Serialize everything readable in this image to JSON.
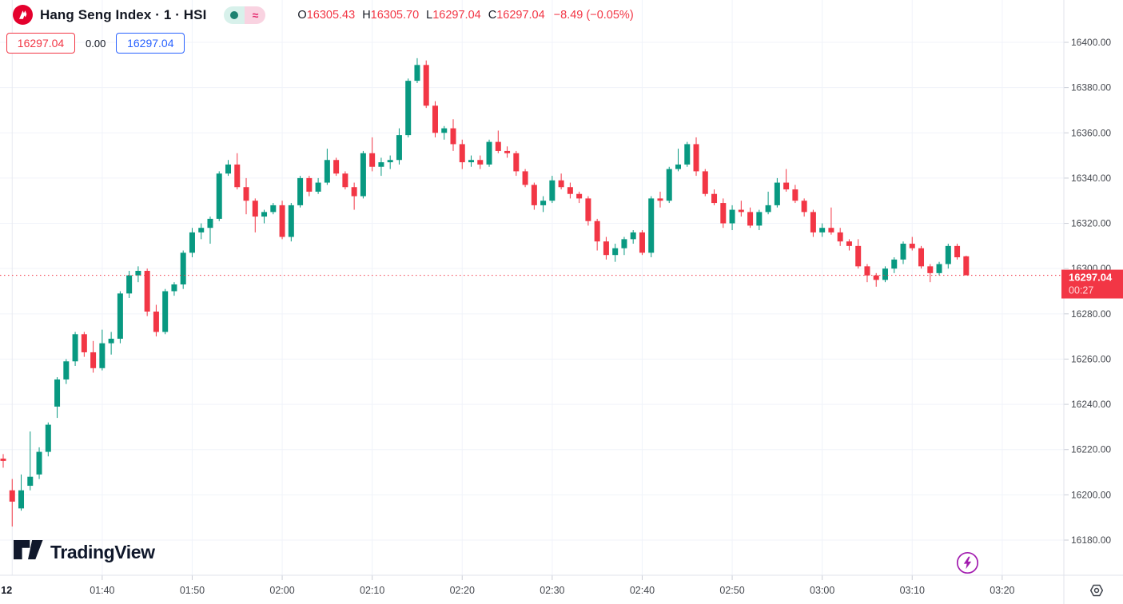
{
  "header": {
    "symbol_title": "Hang Seng Index · 1 · HSI",
    "market_status": {
      "open_dot_icon": "market-open-dot",
      "approx_symbol": "≈"
    },
    "ohlc": {
      "open_label": "O",
      "open": "16305.43",
      "high_label": "H",
      "high": "16305.70",
      "low_label": "L",
      "low": "16297.04",
      "close_label": "C",
      "close": "16297.04",
      "change": "−8.49 (−0.05%)"
    },
    "sell_price": "16297.04",
    "spread": "0.00",
    "buy_price": "16297.04"
  },
  "branding": {
    "logo_text": "TradingView"
  },
  "price_scale": {
    "last_price_label": "16297.04",
    "countdown": "00:27"
  },
  "colors": {
    "up": "#089981",
    "down": "#f23645",
    "accent_blue": "#2962ff",
    "last_price_bg": "#f23645",
    "symbol_logo_red": "#e4012d",
    "flash_purple": "#a21caf",
    "grid": "#f0f3fa",
    "axis_text": "#45484f",
    "separator": "#e0e3eb"
  },
  "chart_data": {
    "type": "candlestick",
    "title": "Hang Seng Index",
    "symbol": "HSI",
    "interval": "1",
    "last_price": 16297.04,
    "countdown": "00:27",
    "y_axis": {
      "tick_labels": [
        "16400.00",
        "16380.00",
        "16360.00",
        "16340.00",
        "16320.00",
        "16300.00",
        "16280.00",
        "16260.00",
        "16240.00",
        "16220.00",
        "16200.00",
        "16180.00"
      ],
      "top_price": 16400,
      "tick_step": 20
    },
    "x_axis": {
      "day_label": "12",
      "tick_labels": [
        "01:40",
        "01:50",
        "02:00",
        "02:10",
        "02:20",
        "02:30",
        "02:40",
        "02:50",
        "03:00",
        "03:10",
        "03:20"
      ]
    },
    "candles": [
      [
        "01:29",
        16216,
        16218,
        16212,
        16215
      ],
      [
        "01:30",
        16202,
        16207,
        16186,
        16197
      ],
      [
        "01:31",
        16194,
        16209,
        16193,
        16202
      ],
      [
        "01:32",
        16204,
        16228,
        16202,
        16208
      ],
      [
        "01:33",
        16209,
        16221,
        16207,
        16219
      ],
      [
        "01:34",
        16219,
        16232,
        16217,
        16231
      ],
      [
        "01:35",
        16239,
        16252,
        16234,
        16251
      ],
      [
        "01:36",
        16251,
        16260,
        16249,
        16259
      ],
      [
        "01:37",
        16259,
        16272,
        16257,
        16271
      ],
      [
        "01:38",
        16271,
        16272,
        16261,
        16263
      ],
      [
        "01:39",
        16263,
        16268,
        16254,
        16256
      ],
      [
        "01:40",
        16256,
        16273,
        16255,
        16267
      ],
      [
        "01:41",
        16267,
        16272,
        16262,
        16269
      ],
      [
        "01:42",
        16269,
        16290,
        16267,
        16289
      ],
      [
        "01:43",
        16289,
        16299,
        16287,
        16297
      ],
      [
        "01:44",
        16297,
        16301,
        16294,
        16299
      ],
      [
        "01:45",
        16299,
        16300,
        16279,
        16281
      ],
      [
        "01:46",
        16281,
        16284,
        16270,
        16272
      ],
      [
        "01:47",
        16272,
        16291,
        16271,
        16290
      ],
      [
        "01:48",
        16290,
        16294,
        16288,
        16293
      ],
      [
        "01:49",
        16293,
        16308,
        16291,
        16307
      ],
      [
        "01:50",
        16307,
        16318,
        16305,
        16316
      ],
      [
        "01:51",
        16316,
        16320,
        16313,
        16318
      ],
      [
        "01:52",
        16318,
        16323,
        16311,
        16322
      ],
      [
        "01:53",
        16322,
        16343,
        16321,
        16342
      ],
      [
        "01:54",
        16342,
        16348,
        16341,
        16346
      ],
      [
        "01:55",
        16346,
        16351,
        16335,
        16336
      ],
      [
        "01:56",
        16336,
        16340,
        16324,
        16330
      ],
      [
        "01:57",
        16330,
        16331,
        16316,
        16323
      ],
      [
        "01:58",
        16323,
        16326,
        16320,
        16325
      ],
      [
        "01:59",
        16325,
        16329,
        16324,
        16328
      ],
      [
        "02:00",
        16328,
        16330,
        16313,
        16314
      ],
      [
        "02:01",
        16314,
        16329,
        16312,
        16328
      ],
      [
        "02:02",
        16328,
        16341,
        16327,
        16340
      ],
      [
        "02:03",
        16340,
        16341,
        16332,
        16334
      ],
      [
        "02:04",
        16334,
        16340,
        16333,
        16338
      ],
      [
        "02:05",
        16338,
        16353,
        16337,
        16348
      ],
      [
        "02:06",
        16348,
        16349,
        16341,
        16342
      ],
      [
        "02:07",
        16342,
        16343,
        16335,
        16336
      ],
      [
        "02:08",
        16336,
        16338,
        16326,
        16332
      ],
      [
        "02:09",
        16332,
        16352,
        16331,
        16351
      ],
      [
        "02:10",
        16351,
        16358,
        16343,
        16345
      ],
      [
        "02:11",
        16345,
        16349,
        16341,
        16347
      ],
      [
        "02:12",
        16347,
        16350,
        16344,
        16348
      ],
      [
        "02:13",
        16348,
        16362,
        16346,
        16359
      ],
      [
        "02:14",
        16359,
        16384,
        16358,
        16383
      ],
      [
        "02:15",
        16383,
        16393,
        16382,
        16390
      ],
      [
        "02:16",
        16390,
        16392,
        16371,
        16372
      ],
      [
        "02:17",
        16372,
        16374,
        16358,
        16360
      ],
      [
        "02:18",
        16360,
        16363,
        16357,
        16362
      ],
      [
        "02:19",
        16362,
        16366,
        16352,
        16355
      ],
      [
        "02:20",
        16355,
        16357,
        16344,
        16347
      ],
      [
        "02:21",
        16347,
        16350,
        16345,
        16348
      ],
      [
        "02:22",
        16348,
        16350,
        16344,
        16346
      ],
      [
        "02:23",
        16346,
        16357,
        16345,
        16356
      ],
      [
        "02:24",
        16356,
        16361,
        16351,
        16352
      ],
      [
        "02:25",
        16352,
        16354,
        16349,
        16351
      ],
      [
        "02:26",
        16351,
        16352,
        16341,
        16343
      ],
      [
        "02:27",
        16343,
        16344,
        16336,
        16337
      ],
      [
        "02:28",
        16337,
        16338,
        16326,
        16328
      ],
      [
        "02:29",
        16328,
        16332,
        16325,
        16330
      ],
      [
        "02:30",
        16330,
        16341,
        16329,
        16339
      ],
      [
        "02:31",
        16339,
        16342,
        16335,
        16336
      ],
      [
        "02:32",
        16336,
        16338,
        16331,
        16333
      ],
      [
        "02:33",
        16333,
        16334,
        16329,
        16331
      ],
      [
        "02:34",
        16331,
        16332,
        16319,
        16321
      ],
      [
        "02:35",
        16321,
        16322,
        16308,
        16312
      ],
      [
        "02:36",
        16312,
        16314,
        16304,
        16306
      ],
      [
        "02:37",
        16306,
        16311,
        16303,
        16309
      ],
      [
        "02:38",
        16309,
        16314,
        16306,
        16313
      ],
      [
        "02:39",
        16313,
        16317,
        16311,
        16316
      ],
      [
        "02:40",
        16316,
        16317,
        16306,
        16307
      ],
      [
        "02:41",
        16307,
        16332,
        16305,
        16331
      ],
      [
        "02:42",
        16331,
        16334,
        16327,
        16330
      ],
      [
        "02:43",
        16330,
        16345,
        16329,
        16344
      ],
      [
        "02:44",
        16344,
        16353,
        16343,
        16346
      ],
      [
        "02:45",
        16346,
        16356,
        16345,
        16355
      ],
      [
        "02:46",
        16355,
        16358,
        16341,
        16343
      ],
      [
        "02:47",
        16343,
        16344,
        16332,
        16333
      ],
      [
        "02:48",
        16333,
        16335,
        16328,
        16329
      ],
      [
        "02:49",
        16329,
        16331,
        16318,
        16320
      ],
      [
        "02:50",
        16320,
        16328,
        16317,
        16326
      ],
      [
        "02:51",
        16326,
        16330,
        16323,
        16325
      ],
      [
        "02:52",
        16325,
        16327,
        16318,
        16319
      ],
      [
        "02:53",
        16319,
        16326,
        16317,
        16325
      ],
      [
        "02:54",
        16325,
        16334,
        16324,
        16328
      ],
      [
        "02:55",
        16328,
        16340,
        16327,
        16338
      ],
      [
        "02:56",
        16338,
        16344,
        16334,
        16335
      ],
      [
        "02:57",
        16335,
        16337,
        16329,
        16330
      ],
      [
        "02:58",
        16330,
        16331,
        16323,
        16325
      ],
      [
        "02:59",
        16325,
        16326,
        16314,
        16316
      ],
      [
        "03:00",
        16316,
        16320,
        16314,
        16318
      ],
      [
        "03:01",
        16318,
        16327,
        16315,
        16316
      ],
      [
        "03:02",
        16316,
        16318,
        16310,
        16312
      ],
      [
        "03:03",
        16312,
        16313,
        16308,
        16310
      ],
      [
        "03:04",
        16310,
        16313,
        16300,
        16301
      ],
      [
        "03:05",
        16301,
        16302,
        16294,
        16297
      ],
      [
        "03:06",
        16297,
        16298,
        16292,
        16295
      ],
      [
        "03:07",
        16295,
        16301,
        16294,
        16300
      ],
      [
        "03:08",
        16300,
        16305,
        16298,
        16304
      ],
      [
        "03:09",
        16304,
        16312,
        16302,
        16311
      ],
      [
        "03:10",
        16311,
        16314,
        16308,
        16309
      ],
      [
        "03:11",
        16309,
        16310,
        16300,
        16301
      ],
      [
        "03:12",
        16301,
        16302,
        16294,
        16298
      ],
      [
        "03:13",
        16298,
        16303,
        16297,
        16302
      ],
      [
        "03:14",
        16302,
        16311,
        16300,
        16310
      ],
      [
        "03:15",
        16310,
        16311,
        16304,
        16305
      ],
      [
        "03:16",
        16305.43,
        16305.7,
        16297.04,
        16297.04
      ]
    ]
  }
}
